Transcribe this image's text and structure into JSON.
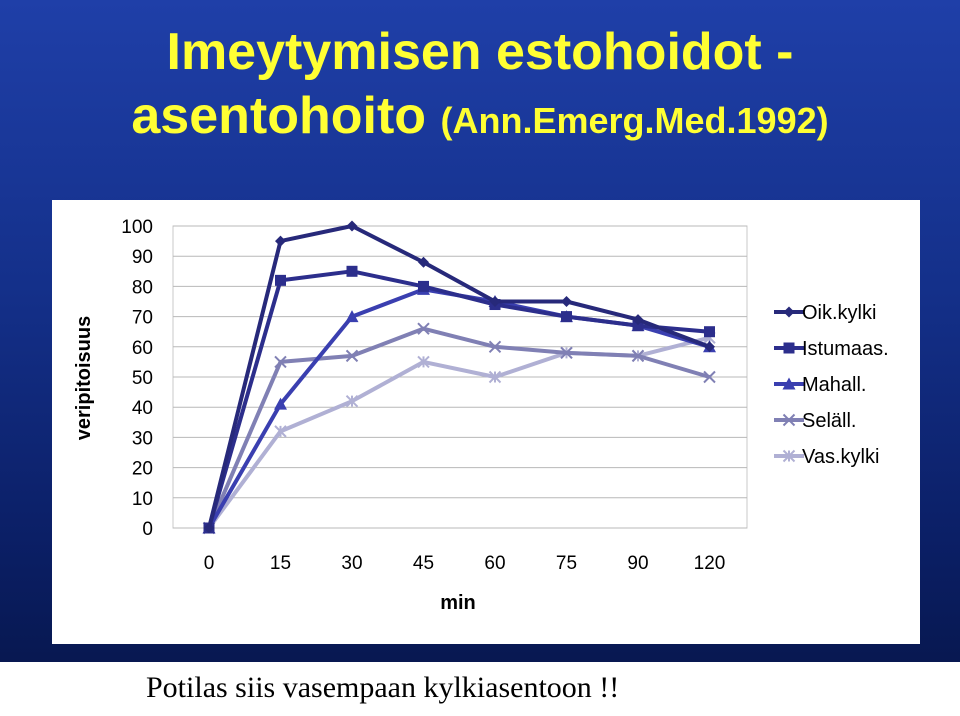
{
  "slide": {
    "title_line1": "Imeytymisen estohoidot -",
    "title_line2_main": "asentohoito",
    "title_line2_cite": "(Ann.Emerg.Med.1992)",
    "caption": "Potilas siis vasempaan kylkiasentoon !!",
    "title_color": "#ffff33",
    "background_color": "#14308a"
  },
  "chart_data": {
    "type": "line",
    "categories": [
      "0",
      "15",
      "30",
      "45",
      "60",
      "75",
      "90",
      "120"
    ],
    "xlabel": "min",
    "ylabel": "veripitoisuus",
    "ylim": [
      0,
      100
    ],
    "yticks": [
      0,
      10,
      20,
      30,
      40,
      50,
      60,
      70,
      80,
      90,
      100
    ],
    "grid": true,
    "legend": "right",
    "series": [
      {
        "name": "Oik.kylki",
        "values": [
          0,
          95,
          100,
          88,
          75,
          75,
          69,
          60
        ],
        "color": "#27297a",
        "marker": "diamond"
      },
      {
        "name": "Istumaas.",
        "values": [
          0,
          82,
          85,
          80,
          74,
          70,
          67,
          65
        ],
        "color": "#2c2e8c",
        "marker": "square"
      },
      {
        "name": "Mahall.",
        "values": [
          0,
          41,
          70,
          79,
          75,
          70,
          67,
          60
        ],
        "color": "#3a3fb0",
        "marker": "triangle"
      },
      {
        "name": "Seläll.",
        "values": [
          0,
          55,
          57,
          66,
          60,
          58,
          57,
          50
        ],
        "color": "#8080b4",
        "marker": "x"
      },
      {
        "name": "Vas.kylki",
        "values": [
          0,
          32,
          42,
          55,
          50,
          58,
          57,
          63
        ],
        "color": "#b0b0d4",
        "marker": "star"
      }
    ]
  }
}
